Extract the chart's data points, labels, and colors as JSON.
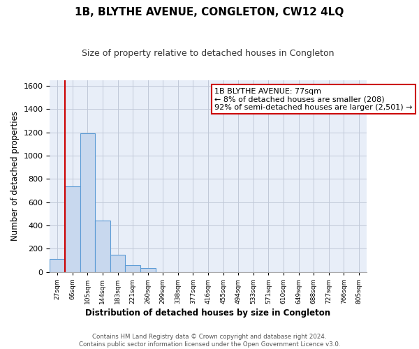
{
  "title": "1B, BLYTHE AVENUE, CONGLETON, CW12 4LQ",
  "subtitle": "Size of property relative to detached houses in Congleton",
  "xlabel": "Distribution of detached houses by size in Congleton",
  "ylabel": "Number of detached properties",
  "bar_labels": [
    "27sqm",
    "66sqm",
    "105sqm",
    "144sqm",
    "183sqm",
    "221sqm",
    "260sqm",
    "299sqm",
    "338sqm",
    "377sqm",
    "416sqm",
    "455sqm",
    "494sqm",
    "533sqm",
    "571sqm",
    "610sqm",
    "649sqm",
    "688sqm",
    "727sqm",
    "766sqm",
    "805sqm"
  ],
  "bar_values": [
    110,
    735,
    1195,
    440,
    145,
    60,
    35,
    0,
    0,
    0,
    0,
    0,
    0,
    0,
    0,
    0,
    0,
    0,
    0,
    0,
    0
  ],
  "bar_color": "#c8d8ee",
  "bar_edge_color": "#5b9bd5",
  "vline_color": "#cc0000",
  "annotation_title": "1B BLYTHE AVENUE: 77sqm",
  "annotation_line1": "← 8% of detached houses are smaller (208)",
  "annotation_line2": "92% of semi-detached houses are larger (2,501) →",
  "annotation_box_color": "#ffffff",
  "annotation_box_edge": "#cc0000",
  "ylim": [
    0,
    1650
  ],
  "yticks": [
    0,
    200,
    400,
    600,
    800,
    1000,
    1200,
    1400,
    1600
  ],
  "footer_line1": "Contains HM Land Registry data © Crown copyright and database right 2024.",
  "footer_line2": "Contains public sector information licensed under the Open Government Licence v3.0.",
  "bg_color": "#f0f4fa",
  "plot_bg_color": "#e8eef8",
  "grid_color": "#c0c8d8"
}
